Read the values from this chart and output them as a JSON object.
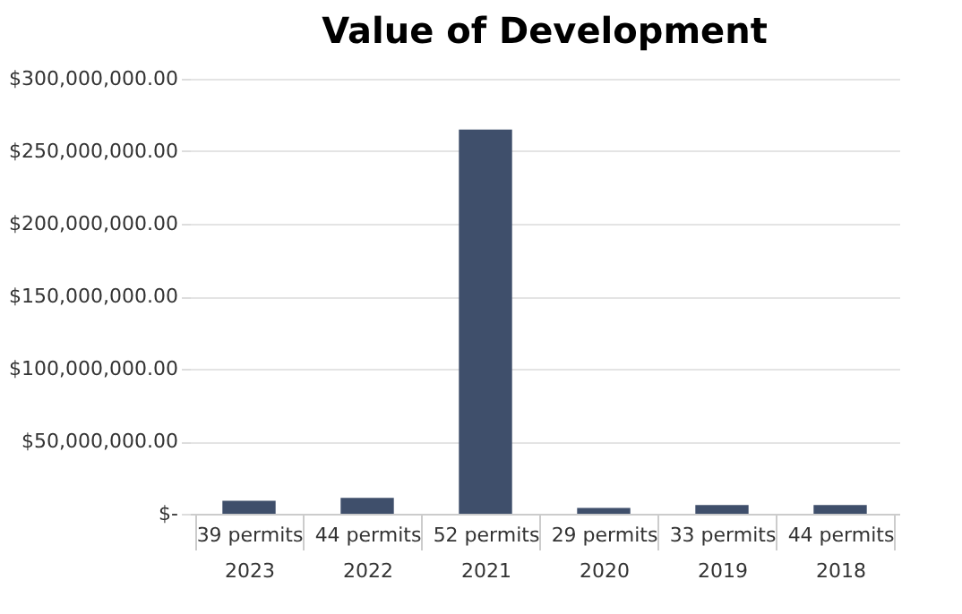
{
  "chart_data": {
    "type": "bar",
    "title": "Value of Development",
    "categories": [
      "39 permits\n2023",
      "44 permits\n2022",
      "52 permits\n2021",
      "29 permits\n2020",
      "33 permits\n2019",
      "44 permits\n2018"
    ],
    "values": [
      9000000,
      11000000,
      265000000,
      4000000,
      6000000,
      6000000
    ],
    "color": "#3f4f6b",
    "ylim": [
      0,
      300000000
    ],
    "yticks": [
      {
        "value": 0,
        "label": "$-"
      },
      {
        "value": 50000000,
        "label": "$50,000,000.00"
      },
      {
        "value": 100000000,
        "label": "$100,000,000.00"
      },
      {
        "value": 150000000,
        "label": "$150,000,000.00"
      },
      {
        "value": 200000000,
        "label": "$200,000,000.00"
      },
      {
        "value": 250000000,
        "label": "$250,000,000.00"
      },
      {
        "value": 300000000,
        "label": "$300,000,000.00"
      }
    ],
    "grid": "y"
  }
}
